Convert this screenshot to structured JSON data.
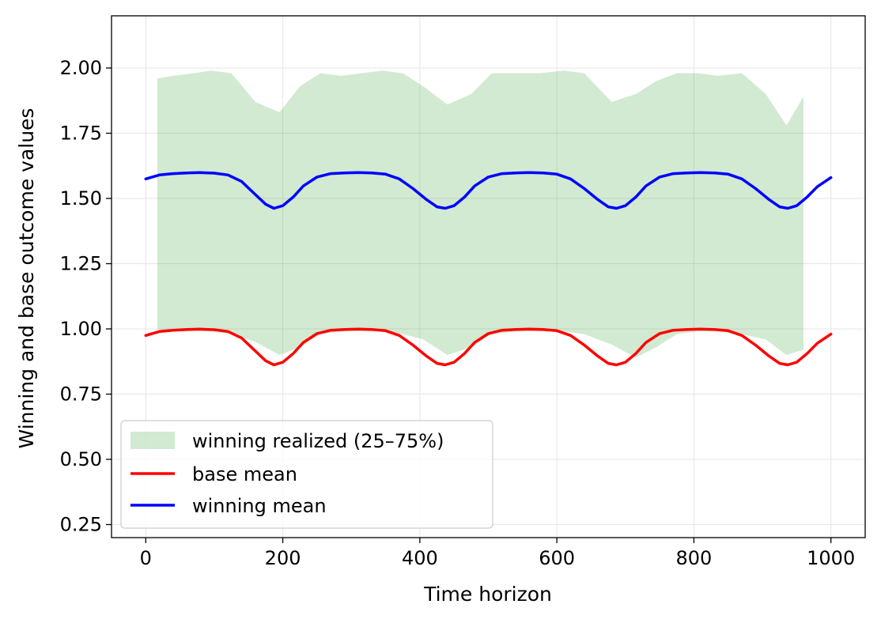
{
  "chart_data": {
    "type": "line",
    "title": "",
    "xlabel": "Time horizon",
    "ylabel": "Winning and base outcome values",
    "xlim": [
      -50,
      1050
    ],
    "ylim": [
      0.2,
      2.2
    ],
    "xticks": [
      0,
      200,
      400,
      600,
      800,
      1000
    ],
    "xtick_labels": [
      "0",
      "200",
      "400",
      "600",
      "800",
      "1000"
    ],
    "yticks": [
      0.25,
      0.5,
      0.75,
      1.0,
      1.25,
      1.5,
      1.75,
      2.0
    ],
    "ytick_labels": [
      "0.25",
      "0.50",
      "0.75",
      "1.00",
      "1.25",
      "1.50",
      "1.75",
      "2.00"
    ],
    "grid": true,
    "legend_position": "lower-left",
    "band": {
      "name": "winning realized (25–75%)",
      "color": "#2ca02c",
      "x": [
        17,
        40,
        70,
        95,
        125,
        160,
        195,
        225,
        255,
        285,
        315,
        345,
        375,
        405,
        440,
        475,
        505,
        540,
        575,
        610,
        640,
        680,
        715,
        745,
        775,
        805,
        835,
        870,
        905,
        935,
        960
      ],
      "upper": [
        1.96,
        1.97,
        1.98,
        1.99,
        1.98,
        1.87,
        1.83,
        1.93,
        1.98,
        1.97,
        1.98,
        1.99,
        1.98,
        1.93,
        1.86,
        1.9,
        1.98,
        1.98,
        1.98,
        1.99,
        1.98,
        1.87,
        1.9,
        1.95,
        1.98,
        1.98,
        1.97,
        1.98,
        1.9,
        1.78,
        1.89
      ],
      "lower": [
        1.0,
        0.99,
        0.99,
        0.99,
        0.98,
        0.95,
        0.9,
        0.93,
        0.98,
        0.99,
        0.99,
        0.99,
        0.98,
        0.96,
        0.9,
        0.93,
        0.98,
        0.99,
        0.99,
        0.99,
        0.98,
        0.94,
        0.89,
        0.93,
        0.98,
        0.99,
        0.99,
        0.98,
        0.96,
        0.9,
        0.92
      ]
    },
    "series": [
      {
        "name": "base mean",
        "color": "#ff0000",
        "x": [
          0,
          20,
          40,
          60,
          80,
          100,
          120,
          140,
          160,
          175,
          187,
          200,
          215,
          230,
          250,
          270,
          290,
          310,
          330,
          350,
          370,
          390,
          410,
          425,
          437,
          450,
          465,
          480,
          500,
          520,
          540,
          560,
          580,
          600,
          620,
          640,
          660,
          675,
          687,
          700,
          715,
          730,
          750,
          770,
          790,
          810,
          830,
          850,
          870,
          890,
          910,
          925,
          937,
          950,
          965,
          980,
          1000
        ],
        "values": [
          0.975,
          0.99,
          0.995,
          0.998,
          0.999,
          0.997,
          0.99,
          0.965,
          0.915,
          0.878,
          0.862,
          0.872,
          0.905,
          0.948,
          0.982,
          0.995,
          0.998,
          0.999,
          0.998,
          0.993,
          0.975,
          0.938,
          0.895,
          0.868,
          0.862,
          0.872,
          0.905,
          0.948,
          0.982,
          0.995,
          0.998,
          0.999,
          0.998,
          0.993,
          0.975,
          0.938,
          0.895,
          0.868,
          0.862,
          0.872,
          0.905,
          0.948,
          0.982,
          0.995,
          0.998,
          0.999,
          0.998,
          0.993,
          0.975,
          0.938,
          0.895,
          0.868,
          0.862,
          0.872,
          0.905,
          0.945,
          0.98
        ]
      },
      {
        "name": "winning mean",
        "color": "#0000ff",
        "x": [
          0,
          20,
          40,
          60,
          80,
          100,
          120,
          140,
          160,
          175,
          187,
          200,
          215,
          230,
          250,
          270,
          290,
          310,
          330,
          350,
          370,
          390,
          410,
          425,
          437,
          450,
          465,
          480,
          500,
          520,
          540,
          560,
          580,
          600,
          620,
          640,
          660,
          675,
          687,
          700,
          715,
          730,
          750,
          770,
          790,
          810,
          830,
          850,
          870,
          890,
          910,
          925,
          937,
          950,
          965,
          980,
          1000
        ],
        "values": [
          1.575,
          1.59,
          1.595,
          1.598,
          1.599,
          1.597,
          1.59,
          1.565,
          1.515,
          1.478,
          1.462,
          1.472,
          1.505,
          1.548,
          1.582,
          1.595,
          1.598,
          1.599,
          1.598,
          1.593,
          1.575,
          1.538,
          1.495,
          1.468,
          1.462,
          1.472,
          1.505,
          1.548,
          1.582,
          1.595,
          1.598,
          1.599,
          1.598,
          1.593,
          1.575,
          1.538,
          1.495,
          1.468,
          1.462,
          1.472,
          1.505,
          1.548,
          1.582,
          1.595,
          1.598,
          1.599,
          1.598,
          1.593,
          1.575,
          1.538,
          1.495,
          1.468,
          1.462,
          1.472,
          1.505,
          1.545,
          1.58
        ]
      }
    ],
    "legend": [
      {
        "label": "winning realized (25–75%)",
        "kind": "patch"
      },
      {
        "label": "base mean",
        "kind": "line"
      },
      {
        "label": "winning mean",
        "kind": "line"
      }
    ]
  }
}
